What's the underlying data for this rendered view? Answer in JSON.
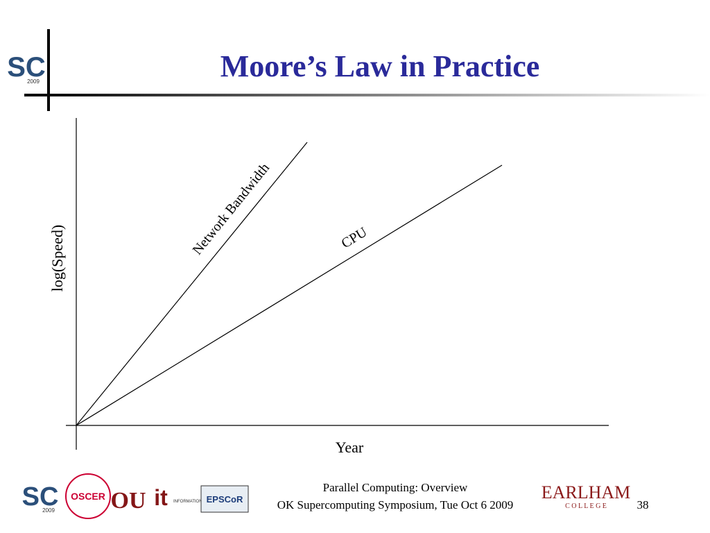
{
  "header": {
    "title": "Moore’s Law in Practice"
  },
  "chart": {
    "y_label": "log(Speed)",
    "x_label": "Year",
    "lines": [
      {
        "label": "Network Bandwidth"
      },
      {
        "label": "CPU"
      }
    ]
  },
  "footer": {
    "line1": "Parallel Computing: Overview",
    "line2": "OK Supercomputing Symposium, Tue Oct 6 2009",
    "page": "38"
  },
  "logos": {
    "sc": "SC",
    "sc_year": "2009",
    "oscer": "OSCER",
    "ou": "OU",
    "it": "it",
    "it_text": "INFORMATION TECHNOLOGY",
    "epscor": "EPSCoR",
    "earlham": "EARLHAM",
    "college": "C O L L E G E"
  }
}
